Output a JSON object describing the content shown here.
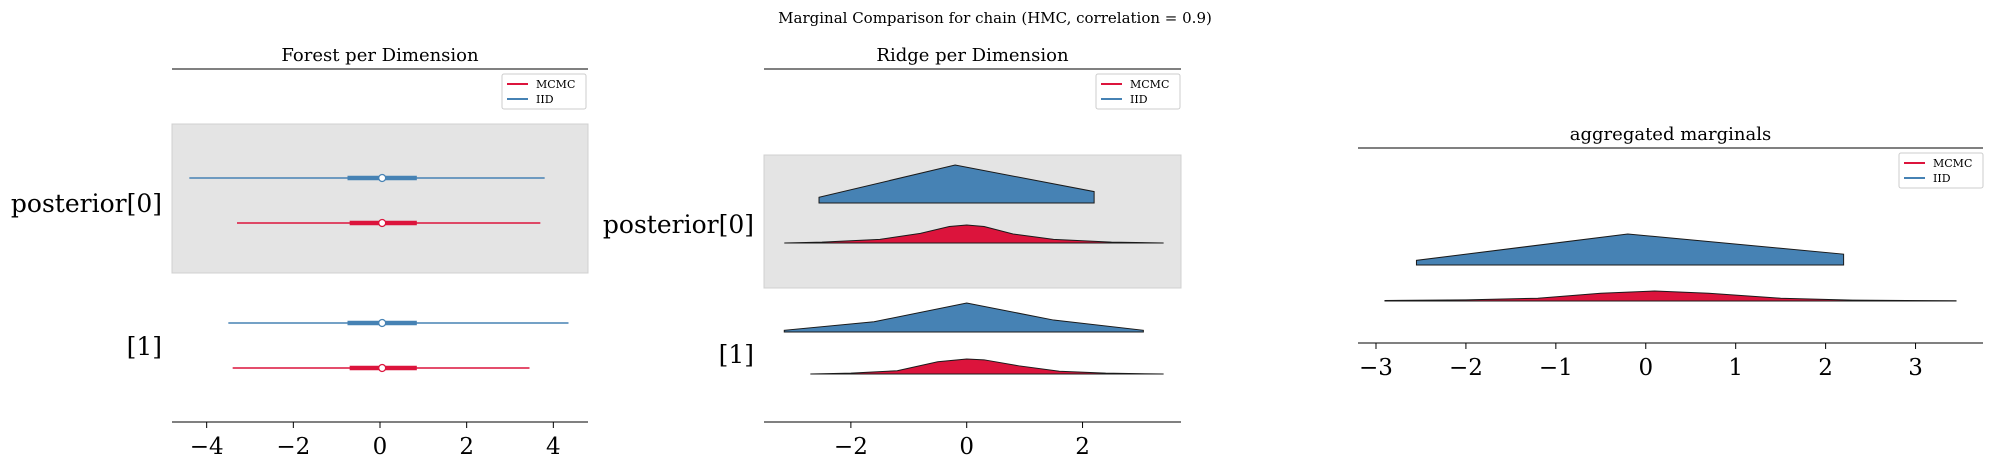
{
  "figure": {
    "suptitle": "Marginal Comparison for chain (HMC, correlation = 0.9)"
  },
  "colors": {
    "mcmc": "#dc143c",
    "iid": "#4682b4",
    "band": "#e4e4e4"
  },
  "chart_data": [
    {
      "type": "forest",
      "title": "Forest per Dimension",
      "xlim": [
        -4.8,
        4.8
      ],
      "xticks": [
        -4,
        -2,
        0,
        2,
        4
      ],
      "xtick_labels": [
        "−4",
        "−2",
        "0",
        "2",
        "4"
      ],
      "legend": {
        "placement": "top-right",
        "entries": [
          "MCMC",
          "IID"
        ]
      },
      "rows": [
        {
          "label": "posterior[0]",
          "shaded": true,
          "series": [
            {
              "name": "IID",
              "hdi": [
                -4.4,
                3.8
              ],
              "iqr": [
                -0.75,
                0.85
              ],
              "median": 0.05
            },
            {
              "name": "MCMC",
              "hdi": [
                -3.3,
                3.7
              ],
              "iqr": [
                -0.7,
                0.85
              ],
              "median": 0.05
            }
          ]
        },
        {
          "label": "[1]",
          "shaded": false,
          "series": [
            {
              "name": "IID",
              "hdi": [
                -3.5,
                4.35
              ],
              "iqr": [
                -0.75,
                0.85
              ],
              "median": 0.05
            },
            {
              "name": "MCMC",
              "hdi": [
                -3.4,
                3.45
              ],
              "iqr": [
                -0.7,
                0.85
              ],
              "median": 0.05
            }
          ]
        }
      ]
    },
    {
      "type": "ridge",
      "title": "Ridge per Dimension",
      "xlim": [
        -3.5,
        3.7
      ],
      "xticks": [
        -2,
        0,
        2
      ],
      "xtick_labels": [
        "−2",
        "0",
        "2"
      ],
      "legend": {
        "placement": "top-right",
        "entries": [
          "MCMC",
          "IID"
        ]
      },
      "rows": [
        {
          "label": "posterior[0]",
          "shaded": true,
          "series": [
            {
              "name": "IID",
              "x": [
                -2.55,
                -0.2,
                2.2
              ],
              "density": [
                0.15,
                1.0,
                0.3
              ]
            },
            {
              "name": "MCMC",
              "x": [
                -3.15,
                -2.5,
                -1.5,
                -0.8,
                -0.3,
                0.0,
                0.3,
                0.8,
                1.5,
                2.5,
                3.4
              ],
              "density": [
                0.0,
                0.03,
                0.12,
                0.32,
                0.55,
                0.6,
                0.55,
                0.3,
                0.12,
                0.03,
                0.0
              ]
            }
          ]
        },
        {
          "label": "[1]",
          "shaded": false,
          "series": [
            {
              "name": "IID",
              "x": [
                -3.15,
                -1.6,
                0.0,
                1.5,
                3.05
              ],
              "density": [
                0.05,
                0.3,
                0.85,
                0.35,
                0.05
              ]
            },
            {
              "name": "MCMC",
              "x": [
                -2.7,
                -2.0,
                -1.2,
                -0.5,
                0.0,
                0.3,
                0.9,
                1.6,
                2.4,
                3.4
              ],
              "density": [
                0.0,
                0.03,
                0.12,
                0.45,
                0.55,
                0.52,
                0.3,
                0.1,
                0.03,
                0.0
              ]
            }
          ]
        }
      ]
    },
    {
      "type": "ridge",
      "title": "aggregated marginals",
      "xlim": [
        -3.2,
        3.75
      ],
      "xticks": [
        -3,
        -2,
        -1,
        0,
        1,
        2,
        3
      ],
      "xtick_labels": [
        "−3",
        "−2",
        "−1",
        "0",
        "1",
        "2",
        "3"
      ],
      "legend": {
        "placement": "top-right",
        "entries": [
          "MCMC",
          "IID"
        ]
      },
      "series": [
        {
          "name": "IID",
          "x": [
            -2.55,
            -0.2,
            2.2
          ],
          "density": [
            0.15,
            1.0,
            0.35
          ]
        },
        {
          "name": "MCMC",
          "x": [
            -2.9,
            -2.0,
            -1.2,
            -0.5,
            0.1,
            0.7,
            1.5,
            2.3,
            3.45
          ],
          "density": [
            0.02,
            0.04,
            0.1,
            0.28,
            0.36,
            0.28,
            0.1,
            0.03,
            0.01
          ]
        }
      ]
    }
  ]
}
